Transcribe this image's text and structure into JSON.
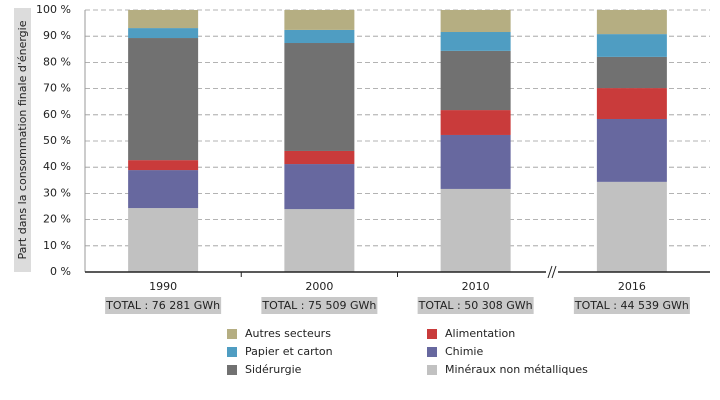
{
  "chart_data": {
    "type": "stacked_bar",
    "y_label": "Part dans la consommation finale d'énergie",
    "categories": [
      "1990",
      "2000",
      "2010",
      "2016"
    ],
    "totals": [
      "TOTAL : 76 281 GWh",
      "TOTAL : 75 509 GWh",
      "TOTAL : 50 308 GWh",
      "TOTAL : 44 539 GWh"
    ],
    "series": [
      {
        "name": "Minéraux non métalliques",
        "color": "#c1c1c1",
        "values": [
          24.4,
          24.0,
          31.7,
          34.4
        ]
      },
      {
        "name": "Chimie",
        "color": "#67689f",
        "values": [
          14.5,
          17.2,
          20.6,
          24.0
        ]
      },
      {
        "name": "Alimentation",
        "color": "#c93b3b",
        "values": [
          3.8,
          5.0,
          9.5,
          11.8
        ]
      },
      {
        "name": "Sidérurgie",
        "color": "#717171",
        "values": [
          46.6,
          41.2,
          22.6,
          11.9
        ]
      },
      {
        "name": "Papier et carton",
        "color": "#4f9dc2",
        "values": [
          3.8,
          5.0,
          7.2,
          8.7
        ]
      },
      {
        "name": "Autres secteurs",
        "color": "#b5ae82",
        "values": [
          6.9,
          7.6,
          8.4,
          9.2
        ]
      }
    ],
    "ylim": [
      0,
      100
    ],
    "yticks": [
      {
        "value": 0,
        "label": "0 %"
      },
      {
        "value": 10,
        "label": "10 %"
      },
      {
        "value": 20,
        "label": "20 %"
      },
      {
        "value": 30,
        "label": "30 %"
      },
      {
        "value": 40,
        "label": "40 %"
      },
      {
        "value": 50,
        "label": "50 %"
      },
      {
        "value": 60,
        "label": "60 %"
      },
      {
        "value": 70,
        "label": "70 %"
      },
      {
        "value": 80,
        "label": "80 %"
      },
      {
        "value": 90,
        "label": "90 %"
      },
      {
        "value": 100,
        "label": "100 %"
      }
    ],
    "grid": true
  }
}
